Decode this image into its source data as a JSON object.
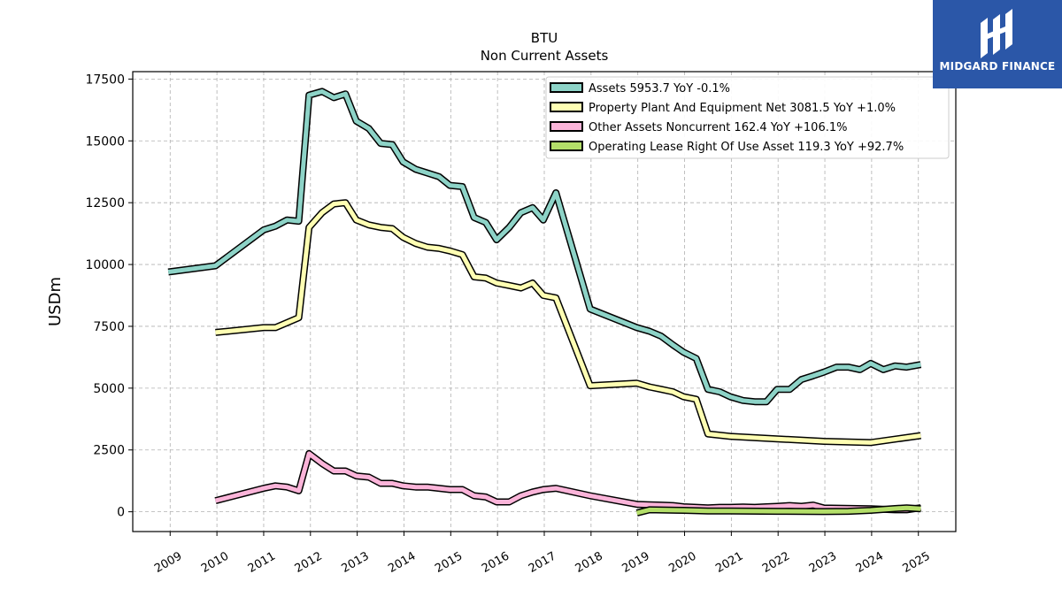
{
  "brand": {
    "name": "MIDGARD FINANCE",
    "bg_color": "#2b57a8"
  },
  "chart_data": {
    "type": "line",
    "title": "BTU",
    "subtitle": "Non Current  Assets",
    "xlabel": "",
    "ylabel": "USDm",
    "ylim": [
      -800,
      17800
    ],
    "xlim": [
      2008.2,
      2025.8
    ],
    "yticks": [
      0,
      2500,
      5000,
      7500,
      10000,
      12500,
      15000,
      17500
    ],
    "xticks": [
      2009,
      2010,
      2011,
      2012,
      2013,
      2014,
      2015,
      2016,
      2017,
      2018,
      2019,
      2020,
      2021,
      2022,
      2023,
      2024,
      2025
    ],
    "grid": true,
    "legend_position": "top-right",
    "series": [
      {
        "name": "Assets  5953.7 YoY -0.1%",
        "color": "#8dd3c7",
        "points": [
          [
            2008.96,
            9700
          ],
          [
            2009.97,
            9950
          ],
          [
            2011.0,
            11400
          ],
          [
            2011.25,
            11550
          ],
          [
            2011.5,
            11800
          ],
          [
            2011.75,
            11750
          ],
          [
            2011.97,
            16850
          ],
          [
            2012.25,
            17000
          ],
          [
            2012.5,
            16750
          ],
          [
            2012.75,
            16900
          ],
          [
            2012.98,
            15800
          ],
          [
            2013.25,
            15500
          ],
          [
            2013.5,
            14900
          ],
          [
            2013.75,
            14850
          ],
          [
            2013.98,
            14150
          ],
          [
            2014.25,
            13850
          ],
          [
            2014.5,
            13700
          ],
          [
            2014.75,
            13550
          ],
          [
            2014.98,
            13200
          ],
          [
            2015.25,
            13150
          ],
          [
            2015.5,
            11900
          ],
          [
            2015.75,
            11700
          ],
          [
            2015.98,
            11000
          ],
          [
            2016.25,
            11500
          ],
          [
            2016.5,
            12100
          ],
          [
            2016.75,
            12300
          ],
          [
            2016.98,
            11800
          ],
          [
            2017.25,
            12900
          ],
          [
            2017.98,
            8200
          ],
          [
            2018.98,
            7450
          ],
          [
            2019.25,
            7300
          ],
          [
            2019.5,
            7100
          ],
          [
            2019.75,
            6750
          ],
          [
            2019.98,
            6450
          ],
          [
            2020.25,
            6200
          ],
          [
            2020.5,
            4950
          ],
          [
            2020.75,
            4850
          ],
          [
            2020.98,
            4650
          ],
          [
            2021.25,
            4500
          ],
          [
            2021.5,
            4450
          ],
          [
            2021.75,
            4450
          ],
          [
            2021.98,
            4950
          ],
          [
            2022.25,
            4950
          ],
          [
            2022.5,
            5350
          ],
          [
            2022.75,
            5500
          ],
          [
            2022.98,
            5650
          ],
          [
            2023.25,
            5850
          ],
          [
            2023.5,
            5850
          ],
          [
            2023.75,
            5750
          ],
          [
            2023.98,
            6000
          ],
          [
            2024.25,
            5750
          ],
          [
            2024.5,
            5900
          ],
          [
            2024.75,
            5850
          ],
          [
            2025.05,
            5953.7
          ]
        ]
      },
      {
        "name": "Property Plant And Equipment Net  3081.5 YoY +1.0%",
        "color": "#ffffb3",
        "points": [
          [
            2009.97,
            7250
          ],
          [
            2011.0,
            7450
          ],
          [
            2011.25,
            7450
          ],
          [
            2011.5,
            7650
          ],
          [
            2011.75,
            7850
          ],
          [
            2011.97,
            11500
          ],
          [
            2012.25,
            12100
          ],
          [
            2012.5,
            12450
          ],
          [
            2012.75,
            12500
          ],
          [
            2012.98,
            11800
          ],
          [
            2013.25,
            11600
          ],
          [
            2013.5,
            11500
          ],
          [
            2013.75,
            11450
          ],
          [
            2013.98,
            11100
          ],
          [
            2014.25,
            10850
          ],
          [
            2014.5,
            10700
          ],
          [
            2014.75,
            10650
          ],
          [
            2014.98,
            10550
          ],
          [
            2015.25,
            10400
          ],
          [
            2015.5,
            9500
          ],
          [
            2015.75,
            9450
          ],
          [
            2015.98,
            9250
          ],
          [
            2016.25,
            9150
          ],
          [
            2016.5,
            9050
          ],
          [
            2016.75,
            9250
          ],
          [
            2016.98,
            8750
          ],
          [
            2017.25,
            8650
          ],
          [
            2017.98,
            5100
          ],
          [
            2018.98,
            5200
          ],
          [
            2019.25,
            5050
          ],
          [
            2019.5,
            4950
          ],
          [
            2019.75,
            4850
          ],
          [
            2019.98,
            4650
          ],
          [
            2020.25,
            4550
          ],
          [
            2020.5,
            3150
          ],
          [
            2020.98,
            3050
          ],
          [
            2021.98,
            2950
          ],
          [
            2022.98,
            2850
          ],
          [
            2023.98,
            2800
          ],
          [
            2025.05,
            3081.5
          ]
        ]
      },
      {
        "name": "Other Assets Noncurrent  162.4 YoY +106.1%",
        "color": "#fbb4d9",
        "points": [
          [
            2009.97,
            450
          ],
          [
            2011.0,
            950
          ],
          [
            2011.25,
            1050
          ],
          [
            2011.5,
            1000
          ],
          [
            2011.75,
            850
          ],
          [
            2011.97,
            2350
          ],
          [
            2012.25,
            1950
          ],
          [
            2012.5,
            1650
          ],
          [
            2012.75,
            1650
          ],
          [
            2012.98,
            1450
          ],
          [
            2013.25,
            1400
          ],
          [
            2013.5,
            1150
          ],
          [
            2013.75,
            1150
          ],
          [
            2013.98,
            1050
          ],
          [
            2014.25,
            1000
          ],
          [
            2014.5,
            1000
          ],
          [
            2014.75,
            950
          ],
          [
            2014.98,
            900
          ],
          [
            2015.25,
            900
          ],
          [
            2015.5,
            650
          ],
          [
            2015.75,
            600
          ],
          [
            2015.98,
            400
          ],
          [
            2016.25,
            400
          ],
          [
            2016.5,
            650
          ],
          [
            2016.75,
            800
          ],
          [
            2016.98,
            900
          ],
          [
            2017.25,
            950
          ],
          [
            2017.98,
            650
          ],
          [
            2018.98,
            300
          ],
          [
            2019.25,
            280
          ],
          [
            2019.5,
            270
          ],
          [
            2019.75,
            250
          ],
          [
            2019.98,
            200
          ],
          [
            2020.25,
            180
          ],
          [
            2020.5,
            160
          ],
          [
            2020.75,
            180
          ],
          [
            2020.98,
            180
          ],
          [
            2021.25,
            190
          ],
          [
            2021.5,
            180
          ],
          [
            2021.75,
            200
          ],
          [
            2021.98,
            220
          ],
          [
            2022.25,
            250
          ],
          [
            2022.5,
            220
          ],
          [
            2022.75,
            270
          ],
          [
            2022.98,
            150
          ],
          [
            2023.98,
            120
          ],
          [
            2024.5,
            80
          ],
          [
            2024.75,
            80
          ],
          [
            2025.05,
            162.4
          ]
        ]
      },
      {
        "name": "Operating Lease Right Of Use Asset  119.3 YoY +92.7%",
        "color": "#b3de69",
        "points": [
          [
            2018.98,
            -50
          ],
          [
            2019.25,
            80
          ],
          [
            2019.98,
            60
          ],
          [
            2020.5,
            30
          ],
          [
            2020.98,
            30
          ],
          [
            2021.98,
            20
          ],
          [
            2022.98,
            10
          ],
          [
            2023.5,
            20
          ],
          [
            2023.98,
            60
          ],
          [
            2024.5,
            130
          ],
          [
            2024.75,
            160
          ],
          [
            2025.05,
            119.3
          ]
        ]
      }
    ]
  }
}
